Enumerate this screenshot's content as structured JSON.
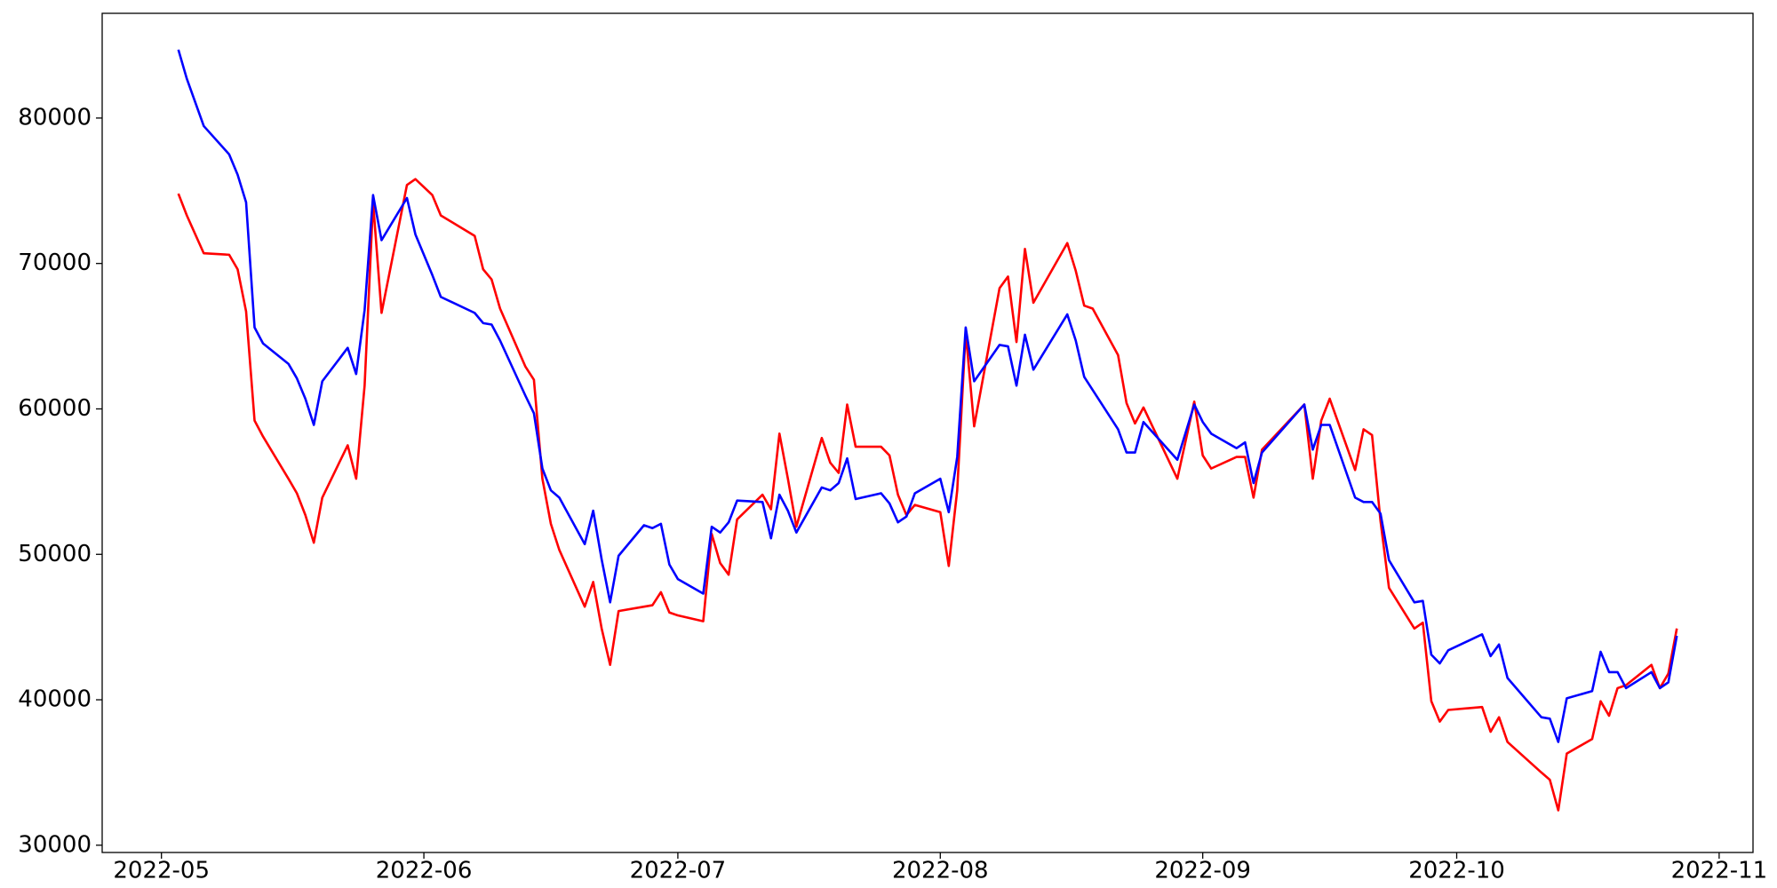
{
  "chart_data": {
    "type": "line",
    "x": [
      "2022-05-03",
      "2022-05-04",
      "2022-05-06",
      "2022-05-09",
      "2022-05-10",
      "2022-05-11",
      "2022-05-12",
      "2022-05-13",
      "2022-05-16",
      "2022-05-17",
      "2022-05-18",
      "2022-05-19",
      "2022-05-20",
      "2022-05-23",
      "2022-05-24",
      "2022-05-25",
      "2022-05-26",
      "2022-05-27",
      "2022-05-30",
      "2022-05-31",
      "2022-06-02",
      "2022-06-03",
      "2022-06-07",
      "2022-06-08",
      "2022-06-09",
      "2022-06-10",
      "2022-06-13",
      "2022-06-14",
      "2022-06-15",
      "2022-06-16",
      "2022-06-17",
      "2022-06-20",
      "2022-06-21",
      "2022-06-22",
      "2022-06-23",
      "2022-06-24",
      "2022-06-27",
      "2022-06-28",
      "2022-06-29",
      "2022-06-30",
      "2022-07-01",
      "2022-07-04",
      "2022-07-05",
      "2022-07-06",
      "2022-07-07",
      "2022-07-08",
      "2022-07-11",
      "2022-07-12",
      "2022-07-13",
      "2022-07-14",
      "2022-07-15",
      "2022-07-18",
      "2022-07-19",
      "2022-07-20",
      "2022-07-21",
      "2022-07-22",
      "2022-07-25",
      "2022-07-26",
      "2022-07-27",
      "2022-07-28",
      "2022-07-29",
      "2022-08-01",
      "2022-08-02",
      "2022-08-03",
      "2022-08-04",
      "2022-08-05",
      "2022-08-08",
      "2022-08-09",
      "2022-08-10",
      "2022-08-11",
      "2022-08-12",
      "2022-08-16",
      "2022-08-17",
      "2022-08-18",
      "2022-08-19",
      "2022-08-22",
      "2022-08-23",
      "2022-08-24",
      "2022-08-25",
      "2022-08-29",
      "2022-08-31",
      "2022-09-01",
      "2022-09-02",
      "2022-09-05",
      "2022-09-06",
      "2022-09-07",
      "2022-09-08",
      "2022-09-13",
      "2022-09-14",
      "2022-09-15",
      "2022-09-16",
      "2022-09-19",
      "2022-09-20",
      "2022-09-21",
      "2022-09-22",
      "2022-09-23",
      "2022-09-26",
      "2022-09-27",
      "2022-09-28",
      "2022-09-29",
      "2022-09-30",
      "2022-10-04",
      "2022-10-05",
      "2022-10-06",
      "2022-10-07",
      "2022-10-11",
      "2022-10-12",
      "2022-10-13",
      "2022-10-14",
      "2022-10-17",
      "2022-10-18",
      "2022-10-19",
      "2022-10-20",
      "2022-10-21",
      "2022-10-24",
      "2022-10-25",
      "2022-10-26",
      "2022-10-27"
    ],
    "series": [
      {
        "color": "#ff0000",
        "values": [
          74800,
          73300,
          70700,
          70600,
          69600,
          66700,
          59200,
          58100,
          55200,
          54200,
          52700,
          50800,
          53900,
          57500,
          55200,
          61600,
          74200,
          66600,
          75400,
          75800,
          74700,
          73300,
          71900,
          69600,
          68900,
          66900,
          62900,
          62000,
          55200,
          52100,
          50300,
          46400,
          48100,
          44900,
          42400,
          46100,
          46400,
          46500,
          47400,
          46000,
          45800,
          45400,
          51400,
          49400,
          48600,
          52400,
          54100,
          53100,
          58300,
          55200,
          51900,
          58000,
          56300,
          55600,
          60300,
          57400,
          57400,
          56800,
          54100,
          52700,
          53400,
          52900,
          49200,
          54400,
          65300,
          58800,
          68300,
          69100,
          64600,
          71000,
          67300,
          71400,
          69500,
          67100,
          66900,
          63700,
          60400,
          59000,
          60100,
          55200,
          60500,
          56800,
          55900,
          56700,
          56700,
          53900,
          57200,
          60300,
          55200,
          59200,
          60700,
          55800,
          58600,
          58200,
          52300,
          47700,
          44900,
          45300,
          39900,
          38500,
          39300,
          39500,
          37800,
          38800,
          37100,
          35000,
          34500,
          32400,
          36300,
          37300,
          39900,
          38900,
          40800,
          41000,
          42400,
          40800,
          41800,
          44900
        ]
      },
      {
        "color": "#0000ff",
        "values": [
          84700,
          82700,
          79450,
          77500,
          76100,
          74200,
          65600,
          64500,
          63100,
          62100,
          60700,
          58900,
          61900,
          64200,
          62400,
          66800,
          74700,
          71600,
          74500,
          72000,
          69200,
          67700,
          66600,
          65900,
          65800,
          64700,
          60900,
          59700,
          55900,
          54400,
          53900,
          50700,
          53000,
          49650,
          46700,
          49900,
          52000,
          51800,
          52100,
          49300,
          48300,
          47300,
          51900,
          51500,
          52200,
          53700,
          53600,
          51100,
          54100,
          53000,
          51500,
          54600,
          54400,
          54900,
          56600,
          53800,
          54200,
          53500,
          52200,
          52600,
          54200,
          55200,
          52900,
          56700,
          65600,
          61900,
          64400,
          64300,
          61600,
          65100,
          62700,
          66500,
          64700,
          62200,
          61300,
          58600,
          57000,
          57000,
          59100,
          56500,
          60300,
          59100,
          58300,
          57300,
          57700,
          54900,
          57000,
          60300,
          57200,
          58900,
          58900,
          53900,
          53600,
          53600,
          52800,
          49600,
          46700,
          46800,
          43100,
          42500,
          43400,
          44500,
          43000,
          43800,
          41500,
          38800,
          38700,
          37100,
          40100,
          40600,
          43300,
          41900,
          41900,
          40800,
          41900,
          40800,
          41200,
          44400
        ]
      }
    ],
    "xlim": [
      "2022-04-24",
      "2022-11-05"
    ],
    "xticks": [
      {
        "value": "2022-05-01",
        "label": "2022-05"
      },
      {
        "value": "2022-06-01",
        "label": "2022-06"
      },
      {
        "value": "2022-07-01",
        "label": "2022-07"
      },
      {
        "value": "2022-08-01",
        "label": "2022-08"
      },
      {
        "value": "2022-09-01",
        "label": "2022-09"
      },
      {
        "value": "2022-10-01",
        "label": "2022-10"
      },
      {
        "value": "2022-11-01",
        "label": "2022-11"
      }
    ],
    "ylim": [
      29500,
      87200
    ],
    "yticks": [
      30000,
      40000,
      50000,
      60000,
      70000,
      80000
    ],
    "grid": false
  }
}
